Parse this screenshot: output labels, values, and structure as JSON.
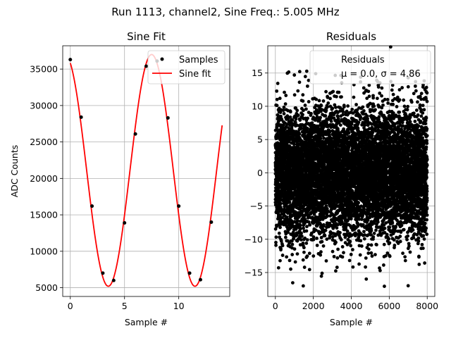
{
  "figure": {
    "suptitle": "Run 1113, channel2, Sine Freq.: 5.005 MHz"
  },
  "chart_data": [
    {
      "type": "scatter",
      "title": "Sine Fit",
      "xlabel": "Sample #",
      "ylabel": "ADC Counts",
      "xlim": [
        -0.7,
        14.7
      ],
      "ylim": [
        3800,
        38200
      ],
      "xticks": [
        0,
        5,
        10
      ],
      "yticks": [
        5000,
        10000,
        15000,
        20000,
        25000,
        30000,
        35000
      ],
      "grid": true,
      "legend": {
        "placement": "top-right",
        "entries": [
          "Samples",
          "Sine fit"
        ]
      },
      "series": [
        {
          "name": "Samples",
          "kind": "points",
          "color": "#000000",
          "x": [
            0,
            1,
            2,
            3,
            4,
            5,
            6,
            7,
            8,
            9,
            10,
            11,
            12,
            13
          ],
          "y": [
            36300,
            28400,
            16200,
            7000,
            6000,
            13900,
            26100,
            35400,
            36100,
            28300,
            16200,
            7000,
            6100,
            14000
          ]
        },
        {
          "name": "Sine fit",
          "kind": "line",
          "color": "#ff0000",
          "model": {
            "offset": 21100,
            "amplitude": 15900,
            "period": 7.99,
            "peak_x": 7.5,
            "x_start": 0,
            "x_end": 14
          }
        }
      ]
    },
    {
      "type": "scatter",
      "title": "Residuals",
      "xlabel": "Sample #",
      "ylabel": "",
      "xlim": [
        -400,
        8400
      ],
      "ylim": [
        -18.6,
        19.1
      ],
      "xticks": [
        0,
        2000,
        4000,
        6000,
        8000
      ],
      "yticks": [
        -15,
        -10,
        -5,
        0,
        5,
        10,
        15
      ],
      "grid": true,
      "legend": {
        "placement": "top-right",
        "entries": [
          "Residuals",
          "μ = 0.0, σ = 4.86"
        ]
      },
      "series": [
        {
          "name": "Residuals",
          "kind": "points",
          "color": "#000000",
          "mu": 0.0,
          "sigma": 4.86,
          "count": 8000,
          "x_range": [
            0,
            8000
          ]
        }
      ]
    }
  ]
}
